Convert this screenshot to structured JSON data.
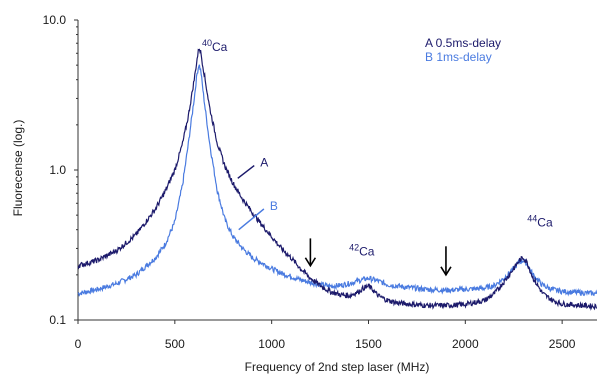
{
  "chart_data": {
    "type": "line",
    "xlabel": "Frequency of 2nd step laser (MHz)",
    "ylabel": "Fluorecense (log.)",
    "xlim": [
      0,
      2680
    ],
    "ylim": [
      0.1,
      10
    ],
    "yscale": "log",
    "x_ticks": [
      "0",
      "500",
      "1000",
      "1500",
      "2000",
      "2500"
    ],
    "y_ticks": [
      "0.1",
      "1.0",
      "10.0"
    ],
    "grid": false,
    "legend_position": "top-right",
    "series": [
      {
        "name": "A 0.5ms-delay",
        "short_label": "A",
        "color": "#1c1a6b",
        "x": [
          0,
          100,
          200,
          300,
          400,
          450,
          500,
          540,
          570,
          600,
          615,
          625,
          635,
          650,
          680,
          720,
          760,
          800,
          850,
          900,
          950,
          1000,
          1050,
          1100,
          1150,
          1200,
          1250,
          1300,
          1350,
          1400,
          1450,
          1480,
          1500,
          1520,
          1550,
          1600,
          1650,
          1700,
          1800,
          1900,
          2000,
          2100,
          2150,
          2200,
          2250,
          2280,
          2300,
          2320,
          2350,
          2400,
          2450,
          2500,
          2600,
          2680
        ],
        "y": [
          0.23,
          0.25,
          0.29,
          0.37,
          0.55,
          0.72,
          1.0,
          1.5,
          2.3,
          4.0,
          5.5,
          6.6,
          6.0,
          4.5,
          2.6,
          1.5,
          1.05,
          0.82,
          0.64,
          0.52,
          0.43,
          0.36,
          0.3,
          0.26,
          0.22,
          0.19,
          0.17,
          0.155,
          0.148,
          0.145,
          0.155,
          0.165,
          0.168,
          0.16,
          0.145,
          0.135,
          0.13,
          0.128,
          0.125,
          0.125,
          0.127,
          0.135,
          0.15,
          0.18,
          0.22,
          0.25,
          0.26,
          0.24,
          0.19,
          0.15,
          0.135,
          0.128,
          0.125,
          0.123
        ]
      },
      {
        "name": "B 1ms-delay",
        "short_label": "B",
        "color": "#4a7be0",
        "x": [
          0,
          100,
          200,
          300,
          400,
          450,
          500,
          540,
          570,
          600,
          615,
          625,
          635,
          650,
          680,
          720,
          760,
          800,
          850,
          900,
          950,
          1000,
          1050,
          1100,
          1150,
          1200,
          1250,
          1300,
          1350,
          1400,
          1450,
          1500,
          1550,
          1600,
          1700,
          1800,
          1900,
          2000,
          2100,
          2150,
          2200,
          2250,
          2280,
          2300,
          2320,
          2350,
          2400,
          2450,
          2500,
          2600,
          2680
        ],
        "y": [
          0.15,
          0.16,
          0.175,
          0.2,
          0.26,
          0.32,
          0.45,
          0.8,
          1.5,
          3.0,
          4.4,
          5.1,
          4.5,
          3.0,
          1.5,
          0.72,
          0.46,
          0.36,
          0.3,
          0.26,
          0.24,
          0.22,
          0.205,
          0.195,
          0.185,
          0.178,
          0.172,
          0.168,
          0.17,
          0.175,
          0.183,
          0.19,
          0.182,
          0.172,
          0.165,
          0.16,
          0.158,
          0.16,
          0.163,
          0.17,
          0.19,
          0.22,
          0.245,
          0.25,
          0.235,
          0.2,
          0.17,
          0.16,
          0.155,
          0.152,
          0.15
        ]
      }
    ],
    "annotations": [
      {
        "id": "ca40",
        "mass": "40",
        "element": "Ca",
        "x": 640,
        "y": 6.2
      },
      {
        "id": "ca42",
        "mass": "42",
        "element": "Ca",
        "x": 1400,
        "y": 0.27
      },
      {
        "id": "ca44",
        "mass": "44",
        "element": "Ca",
        "x": 2320,
        "y": 0.42
      }
    ],
    "arrows": [
      {
        "x": 1200,
        "y_top": 0.35,
        "y_bottom": 0.23
      },
      {
        "x": 1900,
        "y_top": 0.31,
        "y_bottom": 0.2
      }
    ],
    "series_callouts": [
      {
        "series": 0,
        "x1": 825,
        "y1": 0.88,
        "x2": 910,
        "y2": 1.07
      },
      {
        "series": 1,
        "x1": 830,
        "y1": 0.4,
        "x2": 960,
        "y2": 0.55
      }
    ]
  }
}
